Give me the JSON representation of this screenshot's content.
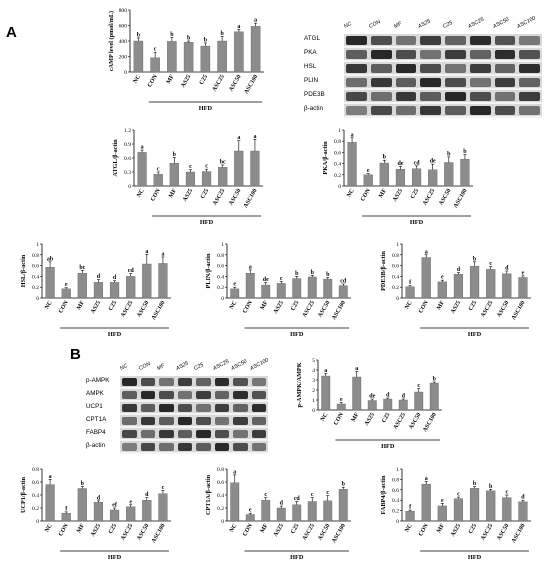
{
  "panels": {
    "a": "A",
    "b": "B"
  },
  "hfd_label": "HFD",
  "groups": [
    "NC",
    "CON",
    "MF",
    "AS25",
    "C25",
    "ASC25",
    "ASC50",
    "ASC100"
  ],
  "blot_a": {
    "lanes": [
      "NC",
      "CON",
      "MF",
      "AS25",
      "C25",
      "ASC25",
      "ASC50",
      "ASC100"
    ],
    "proteins": [
      "ATGL",
      "PKA",
      "HSL",
      "PLIN",
      "PDE3B",
      "β-actin"
    ]
  },
  "blot_b": {
    "lanes": [
      "NC",
      "CON",
      "MF",
      "AS25",
      "C25",
      "ASC25",
      "ASC50",
      "ASC100"
    ],
    "proteins": [
      "p-AMPK",
      "AMPK",
      "UCP1",
      "CPT1A",
      "FABP4",
      "β-actin"
    ]
  },
  "chart_data": [
    {
      "id": "camp",
      "type": "bar",
      "ylabel": "cAMP level (pmol/mL)",
      "ylim": [
        0,
        800
      ],
      "yticks": [
        0,
        200,
        400,
        600,
        800
      ],
      "categories": [
        "NC",
        "CON",
        "MF",
        "AS25",
        "C25",
        "ASC25",
        "ASC50",
        "ASC100"
      ],
      "values": [
        400,
        185,
        395,
        385,
        335,
        400,
        520,
        590
      ],
      "errors": [
        40,
        70,
        50,
        15,
        40,
        60,
        30,
        40
      ],
      "letters": [
        "b",
        "c",
        "b",
        "b",
        "b",
        "b",
        "a",
        "a"
      ],
      "bar_color": "#8c8c8c"
    },
    {
      "id": "atgl",
      "type": "bar",
      "ylabel": "ATGL/β-actin",
      "ylim": [
        0,
        1.2
      ],
      "yticks": [
        0,
        0.3,
        0.6,
        0.9,
        1.2
      ],
      "categories": [
        "NC",
        "CON",
        "MF",
        "AS25",
        "C25",
        "ASC25",
        "ASC50",
        "ASC100"
      ],
      "values": [
        0.72,
        0.25,
        0.49,
        0.3,
        0.31,
        0.4,
        0.75,
        0.75
      ],
      "errors": [
        0.05,
        0.05,
        0.12,
        0.05,
        0.05,
        0.05,
        0.22,
        0.25
      ],
      "letters": [
        "a",
        "c",
        "b",
        "c",
        "c",
        "bc",
        "a",
        "a"
      ],
      "bar_color": "#8c8c8c"
    },
    {
      "id": "pka",
      "type": "bar",
      "ylabel": "PKA/β-actin",
      "ylim": [
        0,
        1.0
      ],
      "yticks": [
        0,
        0.2,
        0.4,
        0.6,
        0.8,
        1.0
      ],
      "categories": [
        "NC",
        "CON",
        "MF",
        "AS25",
        "C25",
        "ASC25",
        "ASC50",
        "ASC100"
      ],
      "values": [
        0.78,
        0.2,
        0.41,
        0.3,
        0.31,
        0.29,
        0.42,
        0.48
      ],
      "errors": [
        0.08,
        0.02,
        0.05,
        0.05,
        0.05,
        0.1,
        0.1,
        0.08
      ],
      "letters": [
        "a",
        "e",
        "b",
        "de",
        "cd",
        "de",
        "b",
        "b"
      ],
      "bar_color": "#8c8c8c"
    },
    {
      "id": "hsl",
      "type": "bar",
      "ylabel": "HSL/β-actin",
      "ylim": [
        0,
        1.0
      ],
      "yticks": [
        0,
        0.2,
        0.4,
        0.6,
        0.8,
        1.0
      ],
      "categories": [
        "NC",
        "CON",
        "MF",
        "AS25",
        "C25",
        "ASC25",
        "ASC50",
        "ASC100"
      ],
      "values": [
        0.57,
        0.17,
        0.46,
        0.29,
        0.29,
        0.4,
        0.63,
        0.64
      ],
      "errors": [
        0.1,
        0.02,
        0.05,
        0.05,
        0.03,
        0.05,
        0.18,
        0.12
      ],
      "letters": [
        "ab",
        "e",
        "bc",
        "d",
        "d",
        "cd",
        "a",
        "a"
      ],
      "bar_color": "#8c8c8c"
    },
    {
      "id": "plin",
      "type": "bar",
      "ylabel": "PLIN/β-actin",
      "ylim": [
        0,
        1.0
      ],
      "yticks": [
        0,
        0.2,
        0.4,
        0.6,
        0.8,
        1.0
      ],
      "categories": [
        "NC",
        "CON",
        "MF",
        "AS25",
        "C25",
        "ASC25",
        "ASC50",
        "ASC100"
      ],
      "values": [
        0.17,
        0.46,
        0.24,
        0.27,
        0.36,
        0.39,
        0.35,
        0.23
      ],
      "errors": [
        0.03,
        0.06,
        0.05,
        0.04,
        0.04,
        0.03,
        0.03,
        0.03
      ],
      "letters": [
        "e",
        "a",
        "de",
        "c",
        "b",
        "b",
        "b",
        "cd"
      ],
      "bar_color": "#8c8c8c"
    },
    {
      "id": "pde3b",
      "type": "bar",
      "ylabel": "PDE3B/β-actin",
      "ylim": [
        0,
        1.0
      ],
      "yticks": [
        0,
        0.2,
        0.4,
        0.6,
        0.8,
        1.0
      ],
      "categories": [
        "NC",
        "CON",
        "MF",
        "AS25",
        "C25",
        "ASC25",
        "ASC50",
        "ASC100"
      ],
      "values": [
        0.21,
        0.75,
        0.3,
        0.44,
        0.59,
        0.53,
        0.45,
        0.38
      ],
      "errors": [
        0.02,
        0.05,
        0.03,
        0.03,
        0.08,
        0.05,
        0.05,
        0.03
      ],
      "letters": [
        "f",
        "a",
        "e",
        "d",
        "b",
        "c",
        "d",
        "e"
      ],
      "bar_color": "#8c8c8c"
    },
    {
      "id": "pampk",
      "type": "bar",
      "ylabel": "p-AMPK/AMPK",
      "ylim": [
        0,
        5
      ],
      "yticks": [
        0,
        1,
        2,
        3,
        4,
        5
      ],
      "categories": [
        "NC",
        "CON",
        "MF",
        "AS25",
        "C25",
        "ASC25",
        "ASC50",
        "ASC100"
      ],
      "values": [
        3.4,
        0.6,
        3.3,
        0.95,
        1.1,
        1.0,
        1.8,
        2.7
      ],
      "errors": [
        0.25,
        0.15,
        0.55,
        0.15,
        0.1,
        0.1,
        0.35,
        0.1
      ],
      "letters": [
        "a",
        "e",
        "a",
        "de",
        "d",
        "d",
        "c",
        "b"
      ],
      "bar_color": "#8c8c8c"
    },
    {
      "id": "ucp1",
      "type": "bar",
      "ylabel": "UCP1/β-actin",
      "ylim": [
        0,
        0.8
      ],
      "yticks": [
        0,
        0.2,
        0.4,
        0.6,
        0.8
      ],
      "categories": [
        "NC",
        "CON",
        "MF",
        "AS25",
        "C25",
        "ASC25",
        "ASC50",
        "ASC100"
      ],
      "values": [
        0.56,
        0.12,
        0.5,
        0.29,
        0.17,
        0.22,
        0.32,
        0.42
      ],
      "errors": [
        0.08,
        0.02,
        0.03,
        0.02,
        0.03,
        0.03,
        0.04,
        0.05
      ],
      "letters": [
        "a",
        "f",
        "b",
        "d",
        "ef",
        "e",
        "d",
        "c"
      ],
      "bar_color": "#8c8c8c"
    },
    {
      "id": "cpt1a",
      "type": "bar",
      "ylabel": "CPT1A/β-actin",
      "ylim": [
        0,
        0.8
      ],
      "yticks": [
        0,
        0.2,
        0.4,
        0.6,
        0.8
      ],
      "categories": [
        "NC",
        "CON",
        "MF",
        "AS25",
        "C25",
        "ASC25",
        "ASC50",
        "ASC100"
      ],
      "values": [
        0.59,
        0.1,
        0.32,
        0.2,
        0.25,
        0.3,
        0.31,
        0.49
      ],
      "errors": [
        0.12,
        0.02,
        0.04,
        0.03,
        0.05,
        0.06,
        0.08,
        0.03
      ],
      "letters": [
        "a",
        "e",
        "c",
        "d",
        "cd",
        "c",
        "c",
        "b"
      ],
      "bar_color": "#8c8c8c"
    },
    {
      "id": "fabp4",
      "type": "bar",
      "ylabel": "FABP4/β-actin",
      "ylim": [
        0,
        1.0
      ],
      "yticks": [
        0,
        0.2,
        0.4,
        0.6,
        0.8,
        1.0
      ],
      "categories": [
        "NC",
        "CON",
        "MF",
        "AS25",
        "C25",
        "ASC25",
        "ASC50",
        "ASC100"
      ],
      "values": [
        0.19,
        0.71,
        0.29,
        0.43,
        0.63,
        0.58,
        0.45,
        0.37
      ],
      "errors": [
        0.02,
        0.05,
        0.05,
        0.03,
        0.03,
        0.03,
        0.05,
        0.03
      ],
      "letters": [
        "f",
        "a",
        "e",
        "c",
        "b",
        "b",
        "c",
        "d"
      ],
      "bar_color": "#8c8c8c"
    }
  ]
}
